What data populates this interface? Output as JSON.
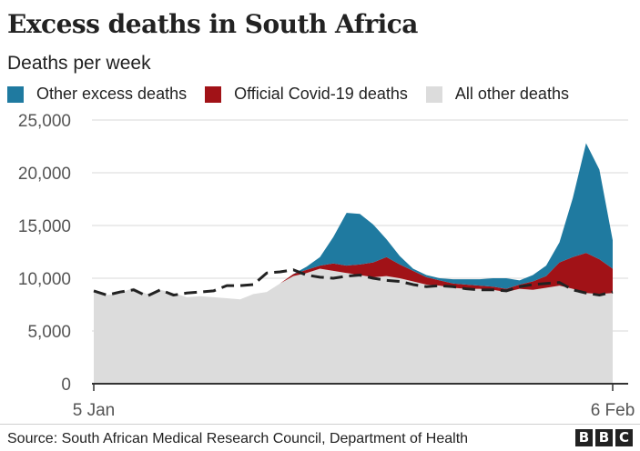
{
  "header": {
    "title": "Excess deaths in South Africa",
    "subtitle": "Deaths per week"
  },
  "legend": [
    {
      "label": "Other excess deaths",
      "color": "#1f7aa0"
    },
    {
      "label": "Official Covid-19 deaths",
      "color": "#a11217"
    },
    {
      "label": "All other deaths",
      "color": "#dcdcdc"
    }
  ],
  "footer": {
    "source": "Source: South African Medical Research Council, Department of Health",
    "logo": [
      "B",
      "B",
      "C"
    ]
  },
  "chart_data": {
    "type": "area",
    "title": "Excess deaths in South Africa",
    "subtitle": "Deaths per week",
    "xlabel": "",
    "ylabel": "",
    "x_tick_labels": [
      "5 Jan",
      "6 Feb"
    ],
    "yticks": [
      0,
      5000,
      10000,
      15000,
      20000,
      25000
    ],
    "ytick_labels": [
      "0",
      "5,000",
      "10,000",
      "15,000",
      "20,000",
      "25,000"
    ],
    "ylim": [
      0,
      25000
    ],
    "grid": true,
    "legend_position": "top",
    "series": [
      {
        "name": "All other deaths",
        "color": "#dcdcdc",
        "values": [
          8700,
          8400,
          8600,
          9100,
          8500,
          8900,
          8600,
          8200,
          8300,
          8200,
          8100,
          8000,
          8500,
          8700,
          9500,
          10200,
          10500,
          10900,
          10700,
          10500,
          10300,
          10100,
          10200,
          10000,
          9700,
          9400,
          9300,
          9100,
          9000,
          9000,
          8900,
          8700,
          9000,
          8900,
          9100,
          9300,
          9000,
          8600,
          8500,
          8600
        ]
      },
      {
        "name": "Official Covid-19 deaths",
        "color": "#a11217",
        "values": [
          0,
          0,
          0,
          0,
          0,
          0,
          0,
          0,
          0,
          0,
          0,
          0,
          0,
          0,
          0,
          200,
          300,
          300,
          700,
          700,
          1000,
          1400,
          1800,
          1300,
          1000,
          700,
          500,
          400,
          400,
          300,
          300,
          300,
          400,
          800,
          1100,
          2200,
          3000,
          3800,
          3300,
          2300
        ]
      },
      {
        "name": "Other excess deaths",
        "color": "#1f7aa0",
        "values": [
          0,
          0,
          0,
          0,
          0,
          0,
          0,
          0,
          0,
          0,
          0,
          0,
          0,
          0,
          0,
          0,
          300,
          800,
          2500,
          5000,
          4800,
          3600,
          1700,
          800,
          200,
          200,
          200,
          400,
          500,
          600,
          800,
          1000,
          400,
          600,
          1000,
          1900,
          5600,
          10400,
          8500,
          2700
        ]
      },
      {
        "name": "",
        "color": "#222222",
        "style": "dashed",
        "values": [
          8800,
          8400,
          8700,
          8900,
          8300,
          8900,
          8400,
          8600,
          8700,
          8800,
          9300,
          9300,
          9400,
          10500,
          10600,
          10800,
          10300,
          10100,
          10000,
          10200,
          10300,
          10000,
          9800,
          9700,
          9400,
          9200,
          9300,
          9200,
          9000,
          8900,
          8900,
          8800,
          9200,
          9400,
          9500,
          9600,
          8900,
          8600,
          8400,
          8700
        ]
      }
    ]
  }
}
